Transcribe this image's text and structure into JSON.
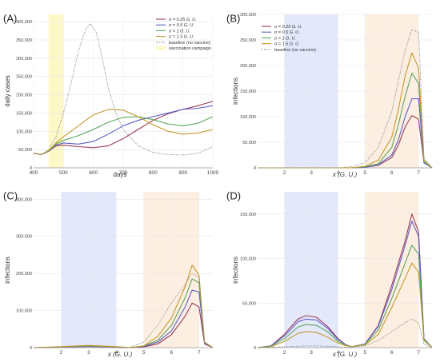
{
  "chart_data": [
    {
      "panel": "(A)",
      "type": "line",
      "xlabel": "days",
      "ylabel": "daily cases",
      "xlim": [
        400,
        1000
      ],
      "ylim": [
        0,
        420000
      ],
      "xticks": [
        400,
        500,
        600,
        700,
        800,
        900,
        1000
      ],
      "yticks": [
        0,
        50000,
        100000,
        150000,
        200000,
        250000,
        300000,
        350000,
        400000
      ],
      "ytick_labels": [
        "0",
        "50,000",
        "100,000",
        "150,000",
        "200,000",
        "250,000",
        "300,000",
        "350,000",
        "400,000"
      ],
      "shaded_regions": [
        {
          "from": 450,
          "to": 500,
          "color": "#fdf8c8",
          "name": "vaccination campaign"
        }
      ],
      "legend": [
        {
          "label": "σ = 0.25 G. U.",
          "color": "#9b3b56"
        },
        {
          "label": "σ = 0.5 G. U.",
          "color": "#5b5fc7"
        },
        {
          "label": "σ = 1 G. U.",
          "color": "#5aa55a"
        },
        {
          "label": "σ = 1.5 G. U.",
          "color": "#c29a2b"
        },
        {
          "label": "baseline (no vaccine)",
          "color": "#888888",
          "dashed": true
        },
        {
          "label": "vaccination campaign",
          "color": "#fdf8c8",
          "patch": true
        }
      ],
      "series": [
        {
          "color": "#9b3b56",
          "x": [
            400,
            425,
            450,
            475,
            500,
            550,
            600,
            650,
            700,
            750,
            800,
            850,
            900,
            950,
            1000
          ],
          "y": [
            40000,
            36000,
            45000,
            60000,
            62000,
            58000,
            55000,
            60000,
            80000,
            105000,
            130000,
            148000,
            160000,
            170000,
            182000
          ]
        },
        {
          "color": "#5b5fc7",
          "x": [
            400,
            425,
            450,
            475,
            500,
            550,
            600,
            650,
            700,
            750,
            800,
            850,
            900,
            950,
            1000
          ],
          "y": [
            40000,
            36000,
            45000,
            62000,
            68000,
            65000,
            72000,
            92000,
            115000,
            130000,
            140000,
            150000,
            160000,
            163000,
            170000
          ]
        },
        {
          "color": "#5aa55a",
          "x": [
            400,
            425,
            450,
            475,
            500,
            550,
            600,
            650,
            700,
            750,
            800,
            850,
            900,
            950,
            1000
          ],
          "y": [
            40000,
            36000,
            46000,
            65000,
            75000,
            88000,
            105000,
            125000,
            138000,
            140000,
            132000,
            120000,
            115000,
            122000,
            140000
          ]
        },
        {
          "color": "#c29a2b",
          "x": [
            400,
            425,
            450,
            475,
            500,
            550,
            600,
            650,
            700,
            750,
            800,
            850,
            900,
            950,
            1000
          ],
          "y": [
            40000,
            36000,
            47000,
            68000,
            85000,
            115000,
            145000,
            160000,
            158000,
            140000,
            118000,
            100000,
            92000,
            95000,
            105000
          ]
        },
        {
          "color": "#888888",
          "dashed": true,
          "x": [
            400,
            425,
            450,
            475,
            500,
            525,
            550,
            575,
            590,
            610,
            630,
            650,
            675,
            700,
            750,
            800,
            850,
            900,
            950,
            1000
          ],
          "y": [
            40000,
            36000,
            50000,
            85000,
            150000,
            230000,
            320000,
            380000,
            395000,
            370000,
            300000,
            220000,
            150000,
            105000,
            60000,
            42000,
            36000,
            35000,
            40000,
            58000
          ]
        }
      ]
    },
    {
      "panel": "(B)",
      "type": "line",
      "xlabel": "x (G. U.)",
      "ylabel": "infections",
      "xlim": [
        1,
        7.5
      ],
      "ylim": [
        0,
        300000
      ],
      "xticks": [
        2,
        3,
        4,
        5,
        6,
        7
      ],
      "yticks": [
        0,
        50000,
        100000,
        150000,
        200000,
        250000,
        300000
      ],
      "ytick_labels": [
        "0",
        "50,000",
        "100,000",
        "150,000",
        "200,000",
        "250,000",
        "300,000"
      ],
      "shaded_regions": [
        {
          "from": 2,
          "to": 4,
          "color": "#e4e8fb"
        },
        {
          "from": 5,
          "to": 7,
          "color": "#fdeee2"
        }
      ],
      "legend": [
        {
          "label": "σ = 0.25 G. U.",
          "color": "#9b3b56"
        },
        {
          "label": "σ = 0.5 G. U.",
          "color": "#5b5fc7"
        },
        {
          "label": "σ = 1 G. U.",
          "color": "#5aa55a"
        },
        {
          "label": "σ = 1.5 G. U.",
          "color": "#c29a2b"
        },
        {
          "label": "baseline (no vaccine)",
          "color": "#888888",
          "dashed": true
        }
      ],
      "series": [
        {
          "color": "#9b3b56",
          "x": [
            1,
            2,
            3,
            4,
            4.5,
            5,
            5.5,
            6,
            6.25,
            6.5,
            6.75,
            7,
            7.2,
            7.5
          ],
          "y": [
            0,
            0,
            0,
            0,
            0,
            1000,
            5000,
            20000,
            45000,
            80000,
            102000,
            95000,
            10000,
            0
          ]
        },
        {
          "color": "#5b5fc7",
          "x": [
            1,
            2,
            3,
            4,
            4.5,
            5,
            5.5,
            6,
            6.25,
            6.5,
            6.75,
            7,
            7.2,
            7.5
          ],
          "y": [
            0,
            0,
            0,
            0,
            0,
            1000,
            6000,
            25000,
            55000,
            100000,
            135000,
            135000,
            10000,
            0
          ]
        },
        {
          "color": "#5aa55a",
          "x": [
            1,
            2,
            3,
            4,
            4.5,
            5,
            5.5,
            6,
            6.25,
            6.5,
            6.75,
            7,
            7.2,
            7.5
          ],
          "y": [
            0,
            0,
            0,
            0,
            0,
            2000,
            8000,
            40000,
            85000,
            140000,
            185000,
            165000,
            12000,
            0
          ]
        },
        {
          "color": "#c29a2b",
          "x": [
            1,
            2,
            3,
            4,
            4.5,
            5,
            5.5,
            6,
            6.25,
            6.5,
            6.75,
            7,
            7.2,
            7.5
          ],
          "y": [
            0,
            0,
            0,
            0,
            0,
            3000,
            15000,
            60000,
            115000,
            180000,
            225000,
            195000,
            15000,
            0
          ]
        },
        {
          "color": "#888888",
          "dashed": true,
          "x": [
            1,
            2,
            3,
            4,
            4.5,
            5,
            5.5,
            6,
            6.25,
            6.5,
            6.75,
            7,
            7.2,
            7.5
          ],
          "y": [
            0,
            0,
            0,
            0,
            2000,
            10000,
            40000,
            110000,
            170000,
            230000,
            270000,
            265000,
            20000,
            0
          ]
        }
      ]
    },
    {
      "panel": "(C)",
      "type": "line",
      "xlabel": "x (G. U.)",
      "ylabel": "infections",
      "xlim": [
        1,
        7.5
      ],
      "ylim": [
        0,
        420000
      ],
      "xticks": [
        2,
        3,
        4,
        5,
        6,
        7
      ],
      "yticks": [
        0,
        100000,
        200000,
        300000,
        400000
      ],
      "ytick_labels": [
        "0",
        "100,000",
        "200,000",
        "300,000",
        "400,000"
      ],
      "shaded_regions": [
        {
          "from": 2,
          "to": 4,
          "color": "#e4e8fb"
        },
        {
          "from": 5,
          "to": 7,
          "color": "#fdeee2"
        }
      ],
      "series": [
        {
          "color": "#9b3b56",
          "x": [
            1,
            2,
            3,
            4,
            4.5,
            5,
            5.5,
            6,
            6.5,
            6.75,
            7,
            7.2,
            7.5
          ],
          "y": [
            0,
            1000,
            3000,
            1000,
            0,
            2000,
            10000,
            35000,
            85000,
            120000,
            110000,
            10000,
            0
          ]
        },
        {
          "color": "#5b5fc7",
          "x": [
            1,
            2,
            3,
            4,
            4.5,
            5,
            5.5,
            6,
            6.5,
            6.75,
            7,
            7.2,
            7.5
          ],
          "y": [
            0,
            1500,
            4000,
            1500,
            0,
            3000,
            15000,
            45000,
            110000,
            155000,
            150000,
            12000,
            0
          ]
        },
        {
          "color": "#5aa55a",
          "x": [
            1,
            2,
            3,
            4,
            4.5,
            5,
            5.5,
            6,
            6.5,
            6.75,
            7,
            7.2,
            7.5
          ],
          "y": [
            0,
            2000,
            5000,
            2000,
            0,
            4000,
            20000,
            60000,
            135000,
            185000,
            175000,
            14000,
            0
          ]
        },
        {
          "color": "#c29a2b",
          "x": [
            1,
            2,
            3,
            4,
            4.5,
            5,
            5.5,
            6,
            6.5,
            6.75,
            7,
            7.2,
            7.5
          ],
          "y": [
            0,
            2500,
            6000,
            2500,
            0,
            5000,
            30000,
            80000,
            165000,
            222000,
            195000,
            15000,
            0
          ]
        },
        {
          "color": "#888888",
          "dashed": true,
          "x": [
            1,
            2,
            3,
            4,
            4.5,
            5,
            5.5,
            6,
            6.5,
            6.75,
            7,
            7.2,
            7.5
          ],
          "y": [
            0,
            1000,
            2000,
            1000,
            1000,
            15000,
            60000,
            120000,
            170000,
            200000,
            190000,
            15000,
            0
          ]
        }
      ]
    },
    {
      "panel": "(D)",
      "type": "line",
      "xlabel": "x (G. U.)",
      "ylabel": "infections",
      "xlim": [
        1,
        7.5
      ],
      "ylim": [
        0,
        175000
      ],
      "xticks": [
        2,
        3,
        4,
        5,
        6,
        7
      ],
      "yticks": [
        0,
        50000,
        100000,
        150000
      ],
      "ytick_labels": [
        "0",
        "50,000",
        "100,000",
        "150,000"
      ],
      "shaded_regions": [
        {
          "from": 2,
          "to": 4,
          "color": "#e4e8fb"
        },
        {
          "from": 5,
          "to": 7,
          "color": "#fdeee2"
        }
      ],
      "series": [
        {
          "color": "#9b3b56",
          "x": [
            1,
            1.5,
            2,
            2.5,
            2.8,
            3.2,
            3.6,
            4,
            4.3,
            4.5,
            5,
            5.5,
            6,
            6.5,
            6.75,
            7,
            7.2,
            7.5
          ],
          "y": [
            0,
            2000,
            15000,
            32000,
            36000,
            34000,
            24000,
            10000,
            3000,
            1000,
            4000,
            25000,
            70000,
            120000,
            150000,
            130000,
            10000,
            0
          ]
        },
        {
          "color": "#5b5fc7",
          "x": [
            1,
            1.5,
            2,
            2.5,
            2.8,
            3.2,
            3.6,
            4,
            4.3,
            4.5,
            5,
            5.5,
            6,
            6.5,
            6.75,
            7,
            7.2,
            7.5
          ],
          "y": [
            0,
            2000,
            13000,
            29000,
            32000,
            31000,
            22000,
            9000,
            3000,
            1000,
            4000,
            24000,
            65000,
            115000,
            142000,
            125000,
            10000,
            0
          ]
        },
        {
          "color": "#5aa55a",
          "x": [
            1,
            1.5,
            2,
            2.5,
            2.8,
            3.2,
            3.6,
            4,
            4.3,
            4.5,
            5,
            5.5,
            6,
            6.5,
            6.75,
            7,
            7.2,
            7.5
          ],
          "y": [
            0,
            1500,
            10000,
            23000,
            26000,
            25000,
            18000,
            7000,
            2500,
            1000,
            3500,
            20000,
            55000,
            95000,
            115000,
            105000,
            9000,
            0
          ]
        },
        {
          "color": "#c29a2b",
          "x": [
            1,
            1.5,
            2,
            2.5,
            2.8,
            3.2,
            3.6,
            4,
            4.3,
            4.5,
            5,
            5.5,
            6,
            6.5,
            6.75,
            7,
            7.2,
            7.5
          ],
          "y": [
            0,
            1000,
            7000,
            16000,
            18000,
            17000,
            12000,
            5000,
            2000,
            1000,
            3000,
            15000,
            45000,
            78000,
            95000,
            85000,
            8000,
            0
          ]
        },
        {
          "color": "#888888",
          "dashed": true,
          "x": [
            1,
            1.5,
            2,
            2.5,
            2.8,
            3.2,
            3.6,
            4,
            4.3,
            4.5,
            5,
            5.5,
            6,
            6.5,
            6.75,
            7,
            7.2,
            7.5
          ],
          "y": [
            0,
            500,
            1000,
            1500,
            2000,
            2000,
            1500,
            1000,
            500,
            500,
            2000,
            8000,
            18000,
            28000,
            32000,
            28000,
            4000,
            0
          ]
        }
      ]
    }
  ]
}
